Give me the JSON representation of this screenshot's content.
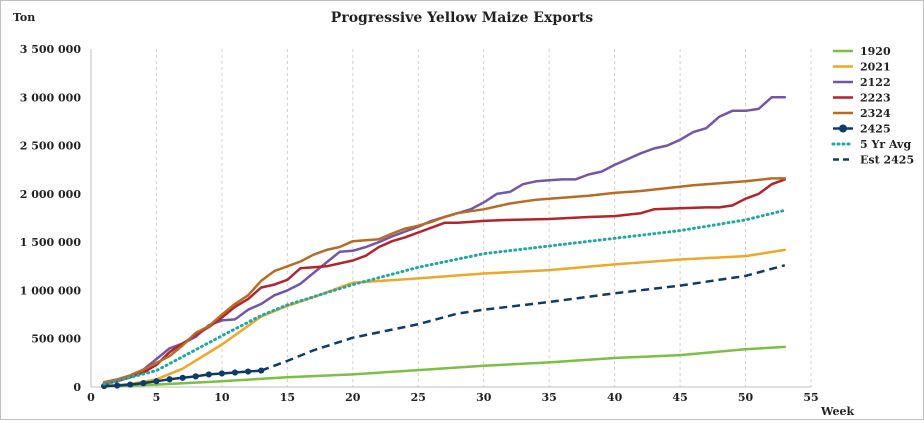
{
  "chart_data": {
    "type": "line",
    "title": "Progressive Yellow Maize Exports",
    "ylabel": "Ton",
    "xlabel": "Week",
    "xlim": [
      0,
      55
    ],
    "ylim": [
      0,
      3500000
    ],
    "x_ticks": [
      0,
      5,
      10,
      15,
      20,
      25,
      30,
      35,
      40,
      45,
      50,
      55
    ],
    "y_ticks": [
      0,
      500000,
      1000000,
      1500000,
      2000000,
      2500000,
      3000000,
      3500000
    ],
    "y_tick_labels": [
      "0",
      "500 000",
      "1 000 000",
      "1 500 000",
      "2 000 000",
      "2 500 000",
      "3 000 000",
      "3 500 000"
    ],
    "grid": "vertical dashed",
    "legend_position": "right",
    "series": [
      {
        "name": "1920",
        "color": "#7cbf42",
        "style": "solid",
        "x": [
          1,
          5,
          10,
          15,
          20,
          25,
          30,
          35,
          40,
          45,
          50,
          53
        ],
        "y": [
          5000,
          25000,
          60000,
          100000,
          130000,
          175000,
          220000,
          255000,
          300000,
          330000,
          390000,
          415000
        ]
      },
      {
        "name": "2021",
        "color": "#f0a628",
        "style": "solid",
        "x": [
          1,
          3,
          5,
          7,
          10,
          13,
          15,
          17,
          20,
          25,
          30,
          35,
          40,
          45,
          50,
          53
        ],
        "y": [
          10000,
          30000,
          80000,
          190000,
          440000,
          730000,
          840000,
          930000,
          1080000,
          1125000,
          1175000,
          1210000,
          1270000,
          1320000,
          1355000,
          1420000
        ]
      },
      {
        "name": "2122",
        "color": "#7356a6",
        "style": "solid",
        "x": [
          1,
          2,
          3,
          4,
          5,
          6,
          7,
          8,
          9,
          10,
          11,
          12,
          13,
          14,
          15,
          16,
          17,
          18,
          19,
          20,
          21,
          22,
          23,
          24,
          25,
          26,
          27,
          28,
          29,
          30,
          31,
          32,
          33,
          34,
          35,
          36,
          37,
          38,
          39,
          40,
          41,
          42,
          43,
          44,
          45,
          46,
          47,
          48,
          49,
          50,
          51,
          52,
          53
        ],
        "y": [
          50000,
          70000,
          120000,
          180000,
          290000,
          400000,
          450000,
          520000,
          640000,
          690000,
          700000,
          800000,
          860000,
          950000,
          1000000,
          1070000,
          1180000,
          1290000,
          1400000,
          1410000,
          1450000,
          1500000,
          1560000,
          1610000,
          1660000,
          1720000,
          1760000,
          1800000,
          1840000,
          1910000,
          2000000,
          2020000,
          2100000,
          2130000,
          2140000,
          2150000,
          2150000,
          2200000,
          2230000,
          2300000,
          2360000,
          2420000,
          2470000,
          2500000,
          2560000,
          2640000,
          2680000,
          2800000,
          2860000,
          2860000,
          2880000,
          3000000,
          3000000
        ]
      },
      {
        "name": "2223",
        "color": "#b3242b",
        "style": "solid",
        "x": [
          1,
          2,
          3,
          4,
          5,
          6,
          7,
          8,
          9,
          10,
          11,
          12,
          13,
          14,
          15,
          16,
          17,
          18,
          19,
          20,
          21,
          22,
          23,
          24,
          25,
          26,
          27,
          28,
          29,
          30,
          32,
          35,
          38,
          40,
          42,
          43,
          45,
          47,
          48,
          49,
          50,
          51,
          52,
          53
        ],
        "y": [
          30000,
          60000,
          100000,
          150000,
          230000,
          360000,
          450000,
          540000,
          620000,
          720000,
          830000,
          910000,
          1030000,
          1060000,
          1110000,
          1230000,
          1240000,
          1250000,
          1280000,
          1310000,
          1360000,
          1450000,
          1510000,
          1550000,
          1600000,
          1650000,
          1700000,
          1700000,
          1710000,
          1720000,
          1730000,
          1740000,
          1760000,
          1770000,
          1800000,
          1840000,
          1850000,
          1860000,
          1860000,
          1880000,
          1950000,
          2000000,
          2100000,
          2150000
        ]
      },
      {
        "name": "2324",
        "color": "#b66c25",
        "style": "solid",
        "x": [
          1,
          2,
          3,
          4,
          5,
          6,
          7,
          8,
          9,
          10,
          11,
          12,
          13,
          14,
          15,
          16,
          17,
          18,
          19,
          20,
          21,
          22,
          23,
          24,
          25,
          26,
          27,
          28,
          29,
          30,
          32,
          34,
          36,
          38,
          40,
          42,
          44,
          46,
          48,
          50,
          52,
          53
        ],
        "y": [
          50000,
          80000,
          120000,
          180000,
          250000,
          320000,
          430000,
          560000,
          630000,
          750000,
          860000,
          950000,
          1100000,
          1200000,
          1250000,
          1300000,
          1370000,
          1420000,
          1450000,
          1510000,
          1520000,
          1530000,
          1590000,
          1640000,
          1670000,
          1710000,
          1760000,
          1800000,
          1820000,
          1840000,
          1900000,
          1940000,
          1960000,
          1980000,
          2010000,
          2030000,
          2060000,
          2090000,
          2110000,
          2130000,
          2160000,
          2160000
        ]
      },
      {
        "name": "2425",
        "color": "#0e3c69",
        "style": "marker",
        "x": [
          1,
          2,
          3,
          4,
          5,
          6,
          7,
          8,
          9,
          10,
          11,
          12,
          13
        ],
        "y": [
          10000,
          15000,
          25000,
          40000,
          60000,
          80000,
          95000,
          110000,
          130000,
          140000,
          150000,
          160000,
          170000
        ]
      },
      {
        "name": "5 Yr Avg",
        "color": "#21a8a5",
        "style": "dotted",
        "x": [
          1,
          5,
          10,
          13,
          15,
          20,
          25,
          30,
          35,
          40,
          45,
          50,
          53
        ],
        "y": [
          30000,
          170000,
          530000,
          740000,
          850000,
          1060000,
          1240000,
          1380000,
          1460000,
          1540000,
          1620000,
          1730000,
          1830000
        ]
      },
      {
        "name": "Est 2425",
        "color": "#0e3c69",
        "style": "dashed",
        "x": [
          13,
          15,
          17,
          20,
          25,
          28,
          30,
          35,
          40,
          45,
          50,
          53
        ],
        "y": [
          170000,
          270000,
          380000,
          510000,
          650000,
          760000,
          800000,
          880000,
          970000,
          1050000,
          1150000,
          1260000
        ]
      }
    ]
  }
}
